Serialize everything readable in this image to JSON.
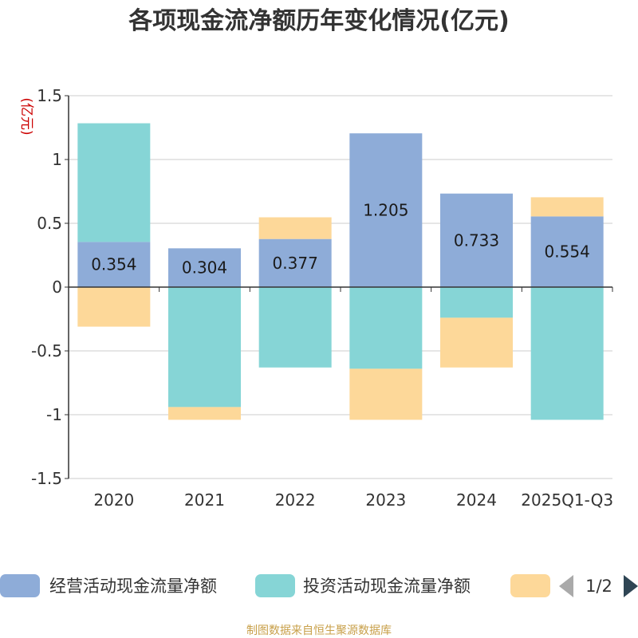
{
  "chart_data": {
    "type": "bar",
    "stacked": true,
    "title": "各项现金流净额历年变化情况(亿元)",
    "ylabel": "(亿元)",
    "xlabel": "",
    "ylim": [
      -1.5,
      1.5
    ],
    "yticks": [
      1.5,
      1,
      0.5,
      0,
      -0.5,
      -1,
      -1.5
    ],
    "ytick_labels": [
      "1.5",
      "1",
      "0.5",
      "0",
      "-0.5",
      "-1",
      "-1.5"
    ],
    "grid": true,
    "categories": [
      "2020",
      "2021",
      "2022",
      "2023",
      "2024",
      "2025Q1-Q3"
    ],
    "series": [
      {
        "name": "经营活动现金流量净额",
        "color": "#8eacd8",
        "values": [
          0.354,
          0.304,
          0.377,
          1.205,
          0.733,
          0.554
        ],
        "show_labels": true
      },
      {
        "name": "投资活动现金流量净额",
        "color": "#86d5d6",
        "values": [
          0.93,
          -0.94,
          -0.63,
          -0.64,
          -0.24,
          -1.04
        ],
        "show_labels": false
      },
      {
        "name": "",
        "color": "#fdd899",
        "values": [
          -0.31,
          -0.1,
          0.17,
          -0.4,
          -0.39,
          0.15
        ],
        "show_labels": false
      }
    ],
    "legend_position": "bottom"
  },
  "legend": {
    "page_indicator": "1/2",
    "prev_icon": "triangle-left-icon",
    "next_icon": "triangle-right-icon",
    "prev_color": "#aaaaaa",
    "next_color": "#2f4554"
  },
  "source": "制图数据来自恒生聚源数据库"
}
